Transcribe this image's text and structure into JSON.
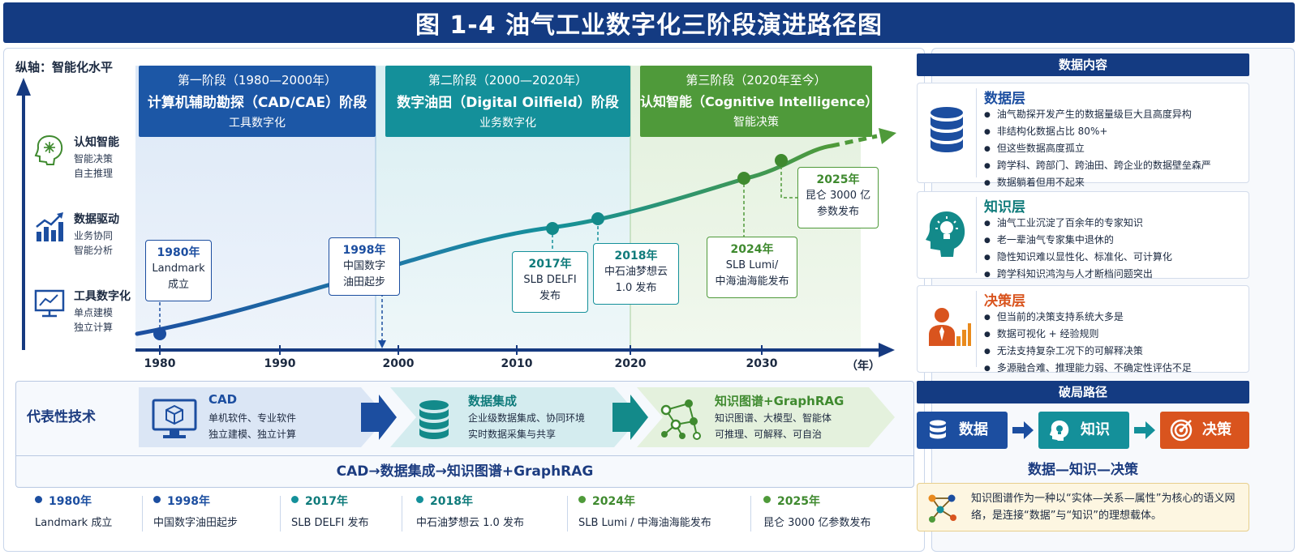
{
  "header": {
    "title": "图 1-4   油气工业数字化三阶段演进路径图"
  },
  "timeline": {
    "y_axis_title": "纵轴：智能化水平",
    "levels": [
      {
        "name": "认知智能",
        "sub1": "智能决策",
        "sub2": "自主推理",
        "icon": "brain-network-icon"
      },
      {
        "name": "数据驱动",
        "sub1": "业务协同",
        "sub2": "智能分析",
        "icon": "growth-chart-icon"
      },
      {
        "name": "工具数字化",
        "sub1": "单点建模",
        "sub2": "独立计算",
        "icon": "monitor-chart-icon"
      }
    ],
    "stages": [
      {
        "period": "第一阶段（1980—2000年）",
        "name": "计算机辅助勘探（CAD/CAE）阶段",
        "theme": "工具数字化",
        "color": "#1c57a6"
      },
      {
        "period": "第二阶段（2000—2020年）",
        "name": "数字油田（Digital Oilfield）阶段",
        "theme": "业务数字化",
        "color": "#14909a"
      },
      {
        "period": "第三阶段（2020年至今）",
        "name": "认知智能（Cognitive Intelligence）阶段",
        "theme": "智能决策",
        "color": "#4f9a3a"
      }
    ],
    "x_ticks": [
      "1980",
      "1990",
      "2000",
      "2010",
      "2020",
      "2030"
    ],
    "x_unit": "（年）",
    "events": [
      {
        "year": "1980年",
        "line1": "Landmark",
        "line2": "成立"
      },
      {
        "year": "1998年",
        "line1": "中国数字",
        "line2": "油田起步"
      },
      {
        "year": "2017年",
        "line1": "SLB DELFI",
        "line2": "发布"
      },
      {
        "year": "2018年",
        "line1": "中石油梦想云",
        "line2": "1.0 发布"
      },
      {
        "year": "2024年",
        "line1": "SLB Lumi/",
        "line2": "中海油海能发布"
      },
      {
        "year": "2025年",
        "line1": "昆仑 3000 亿",
        "line2": "参数发布"
      }
    ]
  },
  "tech": {
    "label": "代表性技术",
    "items": [
      {
        "name": "CAD",
        "desc1": "单机软件、专业软件",
        "desc2": "独立建模、独立计算",
        "icon": "computer-cube-icon"
      },
      {
        "name": "数据集成",
        "desc1": "企业级数据集成、协同环境",
        "desc2": "实时数据采集与共享",
        "icon": "database-icon"
      },
      {
        "name": "知识图谱+GraphRAG",
        "desc1": "知识图谱、大模型、智能体",
        "desc2": "可推理、可解释、可自治",
        "icon": "knowledge-graph-icon"
      }
    ],
    "flow": "CAD→数据集成→知识图谱+GraphRAG"
  },
  "milestones": [
    {
      "year": "1980年",
      "text": "Landmark 成立",
      "color": "#1c4ea0"
    },
    {
      "year": "1998年",
      "text": "中国数字油田起步",
      "color": "#1c4ea0"
    },
    {
      "year": "2017年",
      "text": "SLB DELFI 发布",
      "color": "#14909a"
    },
    {
      "year": "2018年",
      "text": "中石油梦想云 1.0 发布",
      "color": "#14909a"
    },
    {
      "year": "2024年",
      "text": "SLB Lumi / 中海油海能发布",
      "color": "#4f9a3a"
    },
    {
      "year": "2025年",
      "text": "昆仑 3000 亿参数发布",
      "color": "#4f9a3a"
    }
  ],
  "data_content": {
    "title": "数据内容",
    "layers": [
      {
        "name": "数据层",
        "color": "#1c4ea0",
        "icon": "database-stack-icon",
        "items": [
          "油气勘探开发产生的数据量级巨大且高度异构",
          "非结构化数据占比 80%+",
          "但这些数据高度孤立",
          "跨学科、跨部门、跨油田、跨企业的数据壁垒森严",
          "数据躺着但用不起来"
        ]
      },
      {
        "name": "知识层",
        "color": "#14909a",
        "icon": "head-lightbulb-icon",
        "items": [
          "油气工业沉淀了百余年的专家知识",
          "老一辈油气专家集中退休的",
          "隐性知识难以显性化、标准化、可计算化",
          "跨学科知识鸿沟与人才断档问题突出"
        ]
      },
      {
        "name": "决策层",
        "color": "#d9541e",
        "icon": "manager-chart-icon",
        "items": [
          "但当前的决策支持系统大多是",
          "数据可视化 + 经验规则",
          "无法支持复杂工况下的可解释决策",
          "多源融合难、推理能力弱、不确定性评估不足"
        ]
      }
    ]
  },
  "breakthrough": {
    "title": "破局路径",
    "steps": [
      {
        "label": "数据",
        "color": "#1c4ea0",
        "icon": "database-icon"
      },
      {
        "label": "知识",
        "color": "#14909a",
        "icon": "lightbulb-head-icon"
      },
      {
        "label": "决策",
        "color": "#d9541e",
        "icon": "target-icon"
      }
    ],
    "caption": "数据—知识—决策",
    "note": "知识图谱作为一种以“实体—关系—属性”为核心的语义网络，是连接“数据”与“知识”的理想载体。"
  }
}
